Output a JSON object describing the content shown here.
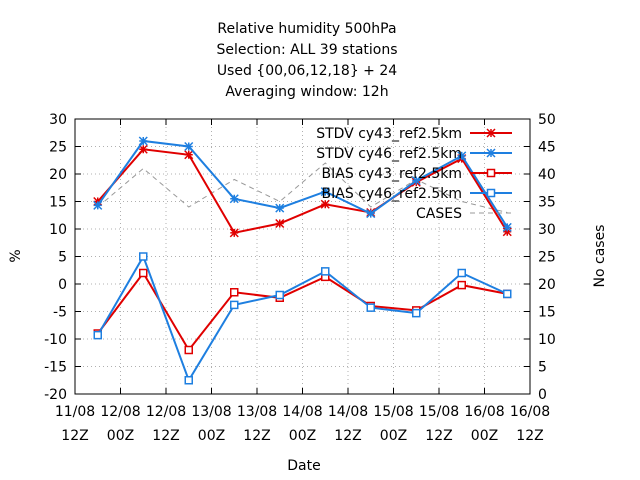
{
  "chart_data": {
    "type": "line",
    "title_lines": [
      "Relative humidity 500hPa",
      "Selection: ALL      39 stations",
      "Used {00,06,12,18} + 24",
      "Averaging window: 12h"
    ],
    "xlabel": "Date",
    "ylabel": "%",
    "y2label": "No cases",
    "ylim": [
      -20,
      30
    ],
    "y2lim": [
      0,
      50
    ],
    "yticks": [
      -20,
      -15,
      -10,
      -5,
      0,
      5,
      10,
      15,
      20,
      25,
      30
    ],
    "y2ticks": [
      0,
      5,
      10,
      15,
      20,
      25,
      30,
      35,
      40,
      45,
      50
    ],
    "xticks": [
      [
        "11/08",
        "12Z"
      ],
      [
        "12/08",
        "00Z"
      ],
      [
        "12/08",
        "12Z"
      ],
      [
        "13/08",
        "00Z"
      ],
      [
        "13/08",
        "12Z"
      ],
      [
        "14/08",
        "00Z"
      ],
      [
        "14/08",
        "12Z"
      ],
      [
        "15/08",
        "00Z"
      ],
      [
        "15/08",
        "12Z"
      ],
      [
        "16/08",
        "00Z"
      ],
      [
        "16/08",
        "12Z"
      ]
    ],
    "x": [
      0.5,
      1.5,
      2.5,
      3.5,
      4.5,
      5.5,
      6.5,
      7.5,
      8.5,
      9.5
    ],
    "x_unit": "tick intervals of 12h from 11/08 12Z",
    "grid": true,
    "legend_position": "top-right",
    "series": [
      {
        "name": "STDV cy43_ref2.5km",
        "color": "#e00000",
        "marker": "star",
        "values": [
          15.0,
          24.5,
          23.5,
          9.3,
          11.0,
          14.5,
          13.0,
          18.5,
          22.8,
          9.5
        ]
      },
      {
        "name": "STDV cy46_ref2.5km",
        "color": "#1e7fe0",
        "marker": "star",
        "values": [
          14.3,
          26.0,
          25.0,
          15.5,
          13.8,
          16.8,
          12.8,
          18.8,
          23.3,
          10.3
        ]
      },
      {
        "name": "BIAS cy43_ref2.5km",
        "color": "#e00000",
        "marker": "square",
        "values": [
          -9.0,
          2.0,
          -12.0,
          -1.5,
          -2.5,
          1.3,
          -4.0,
          -4.8,
          -0.2,
          -1.8
        ]
      },
      {
        "name": "BIAS cy46_ref2.5km",
        "color": "#1e7fe0",
        "marker": "square",
        "values": [
          -9.3,
          5.0,
          -17.5,
          -3.8,
          -2.0,
          2.3,
          -4.3,
          -5.3,
          2.0,
          -1.8
        ]
      },
      {
        "name": "CASES",
        "color": "#999999",
        "marker": "none",
        "dashed": true,
        "axis": "y2",
        "values": [
          34,
          41,
          34,
          39,
          35,
          42,
          34,
          39,
          35,
          33
        ]
      }
    ]
  }
}
